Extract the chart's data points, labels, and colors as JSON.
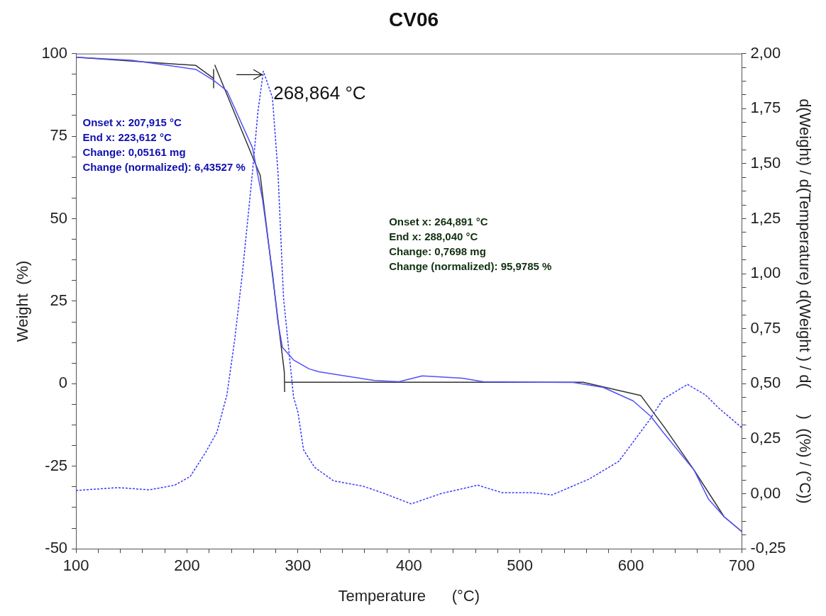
{
  "chart_data": {
    "type": "line",
    "title": "CV06",
    "xlabel": "Temperature      (°C)",
    "ylabel": "Weight  (%)",
    "y2label": "d(Weight) / d(Temperature) d(Weight ) / d(      )  ((%) / (°C))",
    "xlim": [
      100,
      700
    ],
    "xticks": [
      100,
      {
        "value": 120,
        "label": null
      },
      {
        "value": 140,
        "label": null
      },
      {
        "value": 160,
        "label": null
      },
      {
        "value": 180,
        "label": null
      },
      200,
      {
        "value": 220,
        "label": null
      },
      {
        "value": 240,
        "label": null
      },
      {
        "value": 260,
        "label": null
      },
      {
        "value": 280,
        "label": null
      },
      300,
      {
        "value": 320,
        "label": null
      },
      {
        "value": 340,
        "label": null
      },
      {
        "value": 360,
        "label": null
      },
      {
        "value": 380,
        "label": null
      },
      400,
      {
        "value": 420,
        "label": null
      },
      {
        "value": 440,
        "label": null
      },
      {
        "value": 460,
        "label": null
      },
      {
        "value": 480,
        "label": null
      },
      500,
      {
        "value": 520,
        "label": null
      },
      {
        "value": 540,
        "label": null
      },
      {
        "value": 560,
        "label": null
      },
      {
        "value": 580,
        "label": null
      },
      600,
      {
        "value": 620,
        "label": null
      },
      {
        "value": 640,
        "label": null
      },
      {
        "value": 660,
        "label": null
      },
      {
        "value": 680,
        "label": null
      },
      700
    ],
    "ylim": [
      -50,
      100
    ],
    "yticks": [
      -50,
      {
        "value": -43.75,
        "label": null
      },
      {
        "value": -37.5,
        "label": null
      },
      {
        "value": -31.25,
        "label": null
      },
      -25,
      {
        "value": -18.75,
        "label": null
      },
      {
        "value": -12.5,
        "label": null
      },
      {
        "value": -6.25,
        "label": null
      },
      0,
      {
        "value": 6.25,
        "label": null
      },
      {
        "value": 12.5,
        "label": null
      },
      {
        "value": 18.75,
        "label": null
      },
      25,
      {
        "value": 31.25,
        "label": null
      },
      {
        "value": 37.5,
        "label": null
      },
      {
        "value": 43.75,
        "label": null
      },
      50,
      {
        "value": 56.25,
        "label": null
      },
      {
        "value": 62.5,
        "label": null
      },
      {
        "value": 68.75,
        "label": null
      },
      75,
      {
        "value": 81.25,
        "label": null
      },
      {
        "value": 87.5,
        "label": null
      },
      {
        "value": 93.75,
        "label": null
      },
      100
    ],
    "y2lim": [
      -0.25,
      2
    ],
    "y2ticks": [
      {
        "value": -0.25,
        "label": "-0,25"
      },
      {
        "value": -0.1875,
        "label": null
      },
      {
        "value": -0.125,
        "label": null
      },
      {
        "value": -0.0625,
        "label": null
      },
      {
        "value": 0,
        "label": "0,00"
      },
      {
        "value": 0.0625,
        "label": null
      },
      {
        "value": 0.125,
        "label": null
      },
      {
        "value": 0.1875,
        "label": null
      },
      {
        "value": 0.25,
        "label": "0,25"
      },
      {
        "value": 0.3125,
        "label": null
      },
      {
        "value": 0.375,
        "label": null
      },
      {
        "value": 0.4375,
        "label": null
      },
      {
        "value": 0.5,
        "label": "0,50"
      },
      {
        "value": 0.5625,
        "label": null
      },
      {
        "value": 0.625,
        "label": null
      },
      {
        "value": 0.6875,
        "label": null
      },
      {
        "value": 0.75,
        "label": "0,75"
      },
      {
        "value": 0.8125,
        "label": null
      },
      {
        "value": 0.875,
        "label": null
      },
      {
        "value": 0.9375,
        "label": null
      },
      {
        "value": 1,
        "label": "1,00"
      },
      {
        "value": 1.0625,
        "label": null
      },
      {
        "value": 1.125,
        "label": null
      },
      {
        "value": 1.1875,
        "label": null
      },
      {
        "value": 1.25,
        "label": "1,25"
      },
      {
        "value": 1.3125,
        "label": null
      },
      {
        "value": 1.375,
        "label": null
      },
      {
        "value": 1.4375,
        "label": null
      },
      {
        "value": 1.5,
        "label": "1,50"
      },
      {
        "value": 1.5625,
        "label": null
      },
      {
        "value": 1.625,
        "label": null
      },
      {
        "value": 1.6875,
        "label": null
      },
      {
        "value": 1.75,
        "label": "1,75"
      },
      {
        "value": 1.8125,
        "label": null
      },
      {
        "value": 1.875,
        "label": null
      },
      {
        "value": 1.9375,
        "label": null
      },
      {
        "value": 2,
        "label": "2,00"
      }
    ],
    "grid": false,
    "legend": false,
    "marker": "none",
    "series": [
      {
        "color": "#5050ff",
        "line_style": "solid",
        "x": [
          100,
          150,
          208,
          224,
          236,
          259,
          268,
          277,
          282,
          286,
          296,
          310,
          319,
          332,
          369,
          391,
          412,
          448,
          467,
          548,
          575,
          602,
          618,
          629,
          657,
          670,
          684,
          700
        ],
        "values": [
          98.9,
          98,
          95.2,
          91.9,
          88.7,
          71.5,
          56,
          33.7,
          18.6,
          11,
          7.2,
          4.5,
          3.6,
          2.9,
          1,
          0.6,
          2.4,
          1.7,
          0.6,
          0.4,
          -1.1,
          -5.2,
          -9.9,
          -14.7,
          -26.2,
          -35,
          -40.3,
          -44.8
        ]
      },
      {
        "color": "#3a3aff",
        "line_style": "dotted",
        "axis": "y2",
        "x": [
          100,
          138,
          166,
          189,
          203,
          217,
          227,
          236,
          243,
          250,
          259,
          264,
          268.864,
          277,
          282,
          287,
          296,
          300,
          305,
          315,
          332,
          359,
          378,
          402,
          429,
          462,
          484,
          511,
          529,
          562,
          589,
          616,
          629,
          651,
          667,
          679,
          700
        ],
        "values": [
          0.015,
          0.028,
          0.018,
          0.039,
          0.079,
          0.19,
          0.28,
          0.45,
          0.7,
          1.006,
          1.46,
          1.74,
          1.92,
          1.8,
          1.46,
          0.89,
          0.44,
          0.37,
          0.2,
          0.12,
          0.059,
          0.034,
          0.001,
          -0.046,
          0.001,
          0.039,
          0.005,
          0.005,
          -0.005,
          0.066,
          0.147,
          0.33,
          0.43,
          0.497,
          0.45,
          0.39,
          0.3
        ]
      },
      {
        "color": "#333333",
        "line_style": "solid",
        "x": [
          100,
          208,
          224
        ],
        "values": [
          98.9,
          96.4,
          92.5
        ]
      },
      {
        "color": "#333333",
        "line_style": "solid",
        "x": [
          224,
          224
        ],
        "values": [
          95.2,
          89.6
        ]
      },
      {
        "color": "#333333",
        "line_style": "solid",
        "x": [
          225,
          266,
          287.7,
          288
        ],
        "values": [
          96.6,
          63.1,
          3.6,
          -2.5
        ]
      },
      {
        "color": "#333333",
        "line_style": "solid",
        "x": [
          288,
          557,
          609,
          630,
          657,
          684,
          700
        ],
        "values": [
          0.45,
          0.45,
          -3.6,
          -13.1,
          -26.2,
          -40.3,
          -44.8
        ]
      }
    ],
    "annotations": [
      {
        "text": "268,864 °C",
        "x": 268.864,
        "y": 94.7
      },
      "Onset x: 207,915 °C\nEnd x: 223,612 °C\nChange: 0,05161 mg\nChange (normalized): 6,43527 %",
      "Onset x: 264,891 °C\nEnd x: 288,040 °C\nChange: 0,7698 mg\nChange (normalized): 95,9785 %"
    ]
  }
}
